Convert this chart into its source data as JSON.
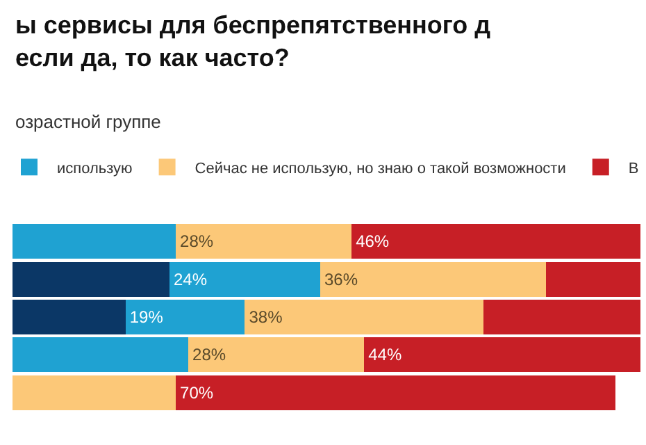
{
  "chart_data": {
    "type": "bar",
    "orientation": "horizontal",
    "stacked": true,
    "title": "ы сервисы для беспрепятственного д\nесли да, то как часто?",
    "subtitle": "озрастной группе",
    "categories": [
      null,
      null,
      null,
      null,
      null
    ],
    "xlim": [
      0,
      100
    ],
    "legend": "top",
    "series": [
      {
        "color": "#0b3766",
        "values": [
          null,
          25,
          18,
          null,
          null
        ],
        "value_labels": [
          null,
          null,
          null,
          null,
          null
        ]
      },
      {
        "name": "использую",
        "color": "#1fa2d2",
        "values": [
          26,
          24,
          19,
          28,
          null
        ],
        "value_labels": [
          null,
          "24%",
          "19%",
          null,
          null
        ]
      },
      {
        "name": "Сейчас не использую, но знаю о такой возможности",
        "color": "#fcc878",
        "values": [
          28,
          36,
          38,
          28,
          26
        ],
        "value_labels": [
          "28%",
          "36%",
          "38%",
          "28%",
          null
        ]
      },
      {
        "name": "В",
        "color": "#c71f26",
        "values": [
          46,
          15,
          25,
          44,
          70
        ],
        "value_labels": [
          "46%",
          null,
          null,
          "44%",
          "70%"
        ]
      }
    ]
  }
}
